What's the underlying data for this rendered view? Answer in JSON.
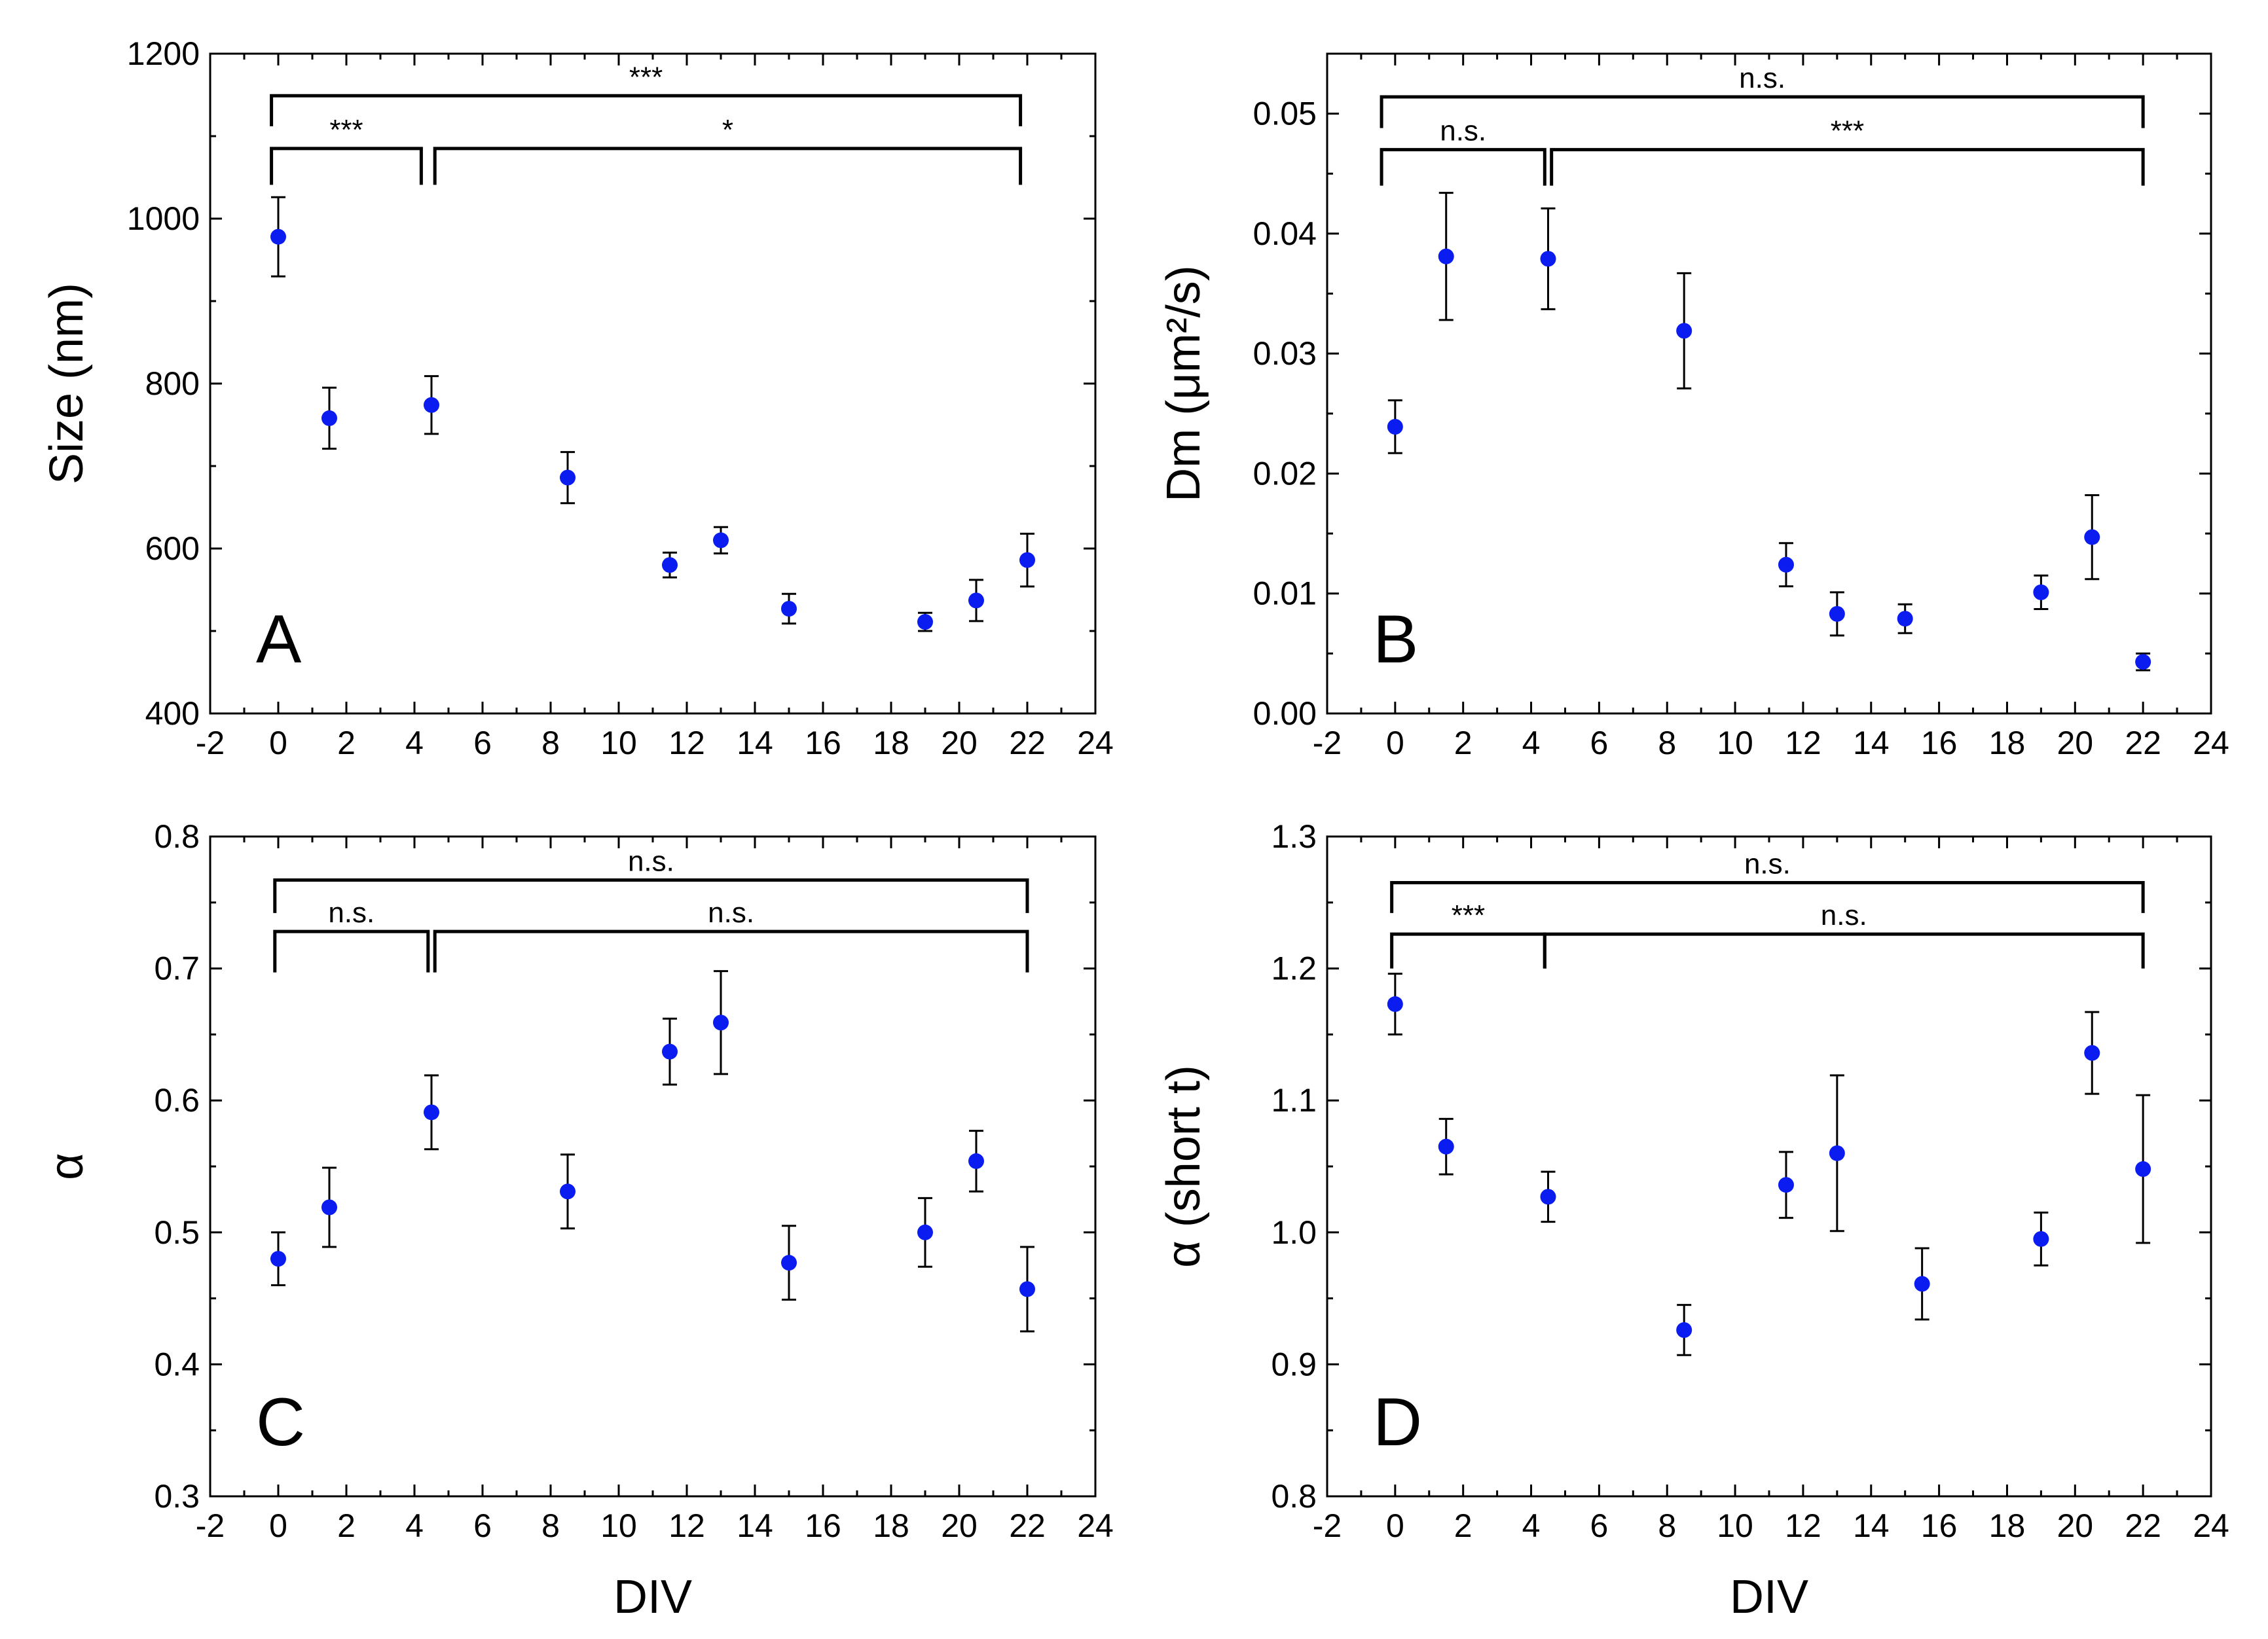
{
  "colors": {
    "marker": "#0a1cf0",
    "axis": "#000000"
  },
  "chart_data": [
    {
      "panel": "A",
      "type": "scatter",
      "xlabel": "",
      "ylabel": "Size (nm)",
      "xlim": [
        -2,
        24
      ],
      "ylim": [
        400,
        1200
      ],
      "xticks": [
        -2,
        0,
        2,
        4,
        6,
        8,
        10,
        12,
        14,
        16,
        18,
        20,
        22,
        24
      ],
      "yticks": [
        400,
        600,
        800,
        1000,
        1200
      ],
      "ytick_labels": [
        "400",
        "600",
        "800",
        "1000",
        "1200"
      ],
      "points": [
        {
          "x": 0,
          "y": 978,
          "err": 48
        },
        {
          "x": 1.5,
          "y": 758,
          "err": 37
        },
        {
          "x": 4.5,
          "y": 774,
          "err": 35
        },
        {
          "x": 8.5,
          "y": 686,
          "err": 31
        },
        {
          "x": 11.5,
          "y": 580,
          "err": 15
        },
        {
          "x": 13,
          "y": 610,
          "err": 16
        },
        {
          "x": 15,
          "y": 527,
          "err": 18
        },
        {
          "x": 19,
          "y": 511,
          "err": 11
        },
        {
          "x": 20.5,
          "y": 537,
          "err": 25
        },
        {
          "x": 22,
          "y": 586,
          "err": 32
        }
      ],
      "brackets": [
        {
          "x1": -0.2,
          "x2": 21.8,
          "y": 1149,
          "drop": 1112,
          "label": "***"
        },
        {
          "x1": -0.2,
          "x2": 4.2,
          "y": 1085,
          "drop": 1041,
          "label": "***"
        },
        {
          "x1": 4.6,
          "x2": 21.8,
          "y": 1085,
          "drop": 1041,
          "label": "*"
        }
      ]
    },
    {
      "panel": "B",
      "type": "scatter",
      "xlabel": "",
      "ylabel": "Dm (μm²/s)",
      "xlim": [
        -2,
        24
      ],
      "ylim": [
        0,
        0.055
      ],
      "xticks": [
        -2,
        0,
        2,
        4,
        6,
        8,
        10,
        12,
        14,
        16,
        18,
        20,
        22,
        24
      ],
      "yticks": [
        0,
        0.01,
        0.02,
        0.03,
        0.04,
        0.05
      ],
      "ytick_labels": [
        "0.00",
        "0.01",
        "0.02",
        "0.03",
        "0.04",
        "0.05"
      ],
      "points": [
        {
          "x": 0,
          "y": 0.0239,
          "err": 0.0022
        },
        {
          "x": 1.5,
          "y": 0.0381,
          "err": 0.0053
        },
        {
          "x": 4.5,
          "y": 0.0379,
          "err": 0.0042
        },
        {
          "x": 8.5,
          "y": 0.0319,
          "err": 0.0048
        },
        {
          "x": 11.5,
          "y": 0.0124,
          "err": 0.0018
        },
        {
          "x": 13,
          "y": 0.0083,
          "err": 0.0018
        },
        {
          "x": 15,
          "y": 0.0079,
          "err": 0.0012
        },
        {
          "x": 19,
          "y": 0.0101,
          "err": 0.0014
        },
        {
          "x": 20.5,
          "y": 0.0147,
          "err": 0.0035
        },
        {
          "x": 22,
          "y": 0.0043,
          "err": 0.0007
        }
      ],
      "brackets": [
        {
          "x1": -0.4,
          "x2": 22,
          "y": 0.0514,
          "drop": 0.0488,
          "label": "n.s."
        },
        {
          "x1": -0.4,
          "x2": 4.4,
          "y": 0.047,
          "drop": 0.044,
          "label": "n.s."
        },
        {
          "x1": 4.6,
          "x2": 22,
          "y": 0.047,
          "drop": 0.044,
          "label": "***"
        }
      ]
    },
    {
      "panel": "C",
      "type": "scatter",
      "xlabel": "DIV",
      "ylabel": "α",
      "xlim": [
        -2,
        24
      ],
      "ylim": [
        0.3,
        0.8
      ],
      "xticks": [
        -2,
        0,
        2,
        4,
        6,
        8,
        10,
        12,
        14,
        16,
        18,
        20,
        22,
        24
      ],
      "yticks": [
        0.3,
        0.4,
        0.5,
        0.6,
        0.7,
        0.8
      ],
      "ytick_labels": [
        "0.3",
        "0.4",
        "0.5",
        "0.6",
        "0.7",
        "0.8"
      ],
      "points": [
        {
          "x": 0,
          "y": 0.48,
          "err": 0.02
        },
        {
          "x": 1.5,
          "y": 0.519,
          "err": 0.03
        },
        {
          "x": 4.5,
          "y": 0.591,
          "err": 0.028
        },
        {
          "x": 8.5,
          "y": 0.531,
          "err": 0.028
        },
        {
          "x": 11.5,
          "y": 0.637,
          "err": 0.025
        },
        {
          "x": 13,
          "y": 0.659,
          "err": 0.039
        },
        {
          "x": 15,
          "y": 0.477,
          "err": 0.028
        },
        {
          "x": 19,
          "y": 0.5,
          "err": 0.026
        },
        {
          "x": 20.5,
          "y": 0.554,
          "err": 0.023
        },
        {
          "x": 22,
          "y": 0.457,
          "err": 0.032
        }
      ],
      "brackets": [
        {
          "x1": -0.1,
          "x2": 22,
          "y": 0.767,
          "drop": 0.742,
          "label": "n.s."
        },
        {
          "x1": -0.1,
          "x2": 4.4,
          "y": 0.728,
          "drop": 0.697,
          "label": "n.s."
        },
        {
          "x1": 4.6,
          "x2": 22,
          "y": 0.728,
          "drop": 0.697,
          "label": "n.s."
        }
      ]
    },
    {
      "panel": "D",
      "type": "scatter",
      "xlabel": "DIV",
      "ylabel": "α (short t)",
      "xlim": [
        -2,
        24
      ],
      "ylim": [
        0.8,
        1.3
      ],
      "xticks": [
        -2,
        0,
        2,
        4,
        6,
        8,
        10,
        12,
        14,
        16,
        18,
        20,
        22,
        24
      ],
      "yticks": [
        0.8,
        0.9,
        1.0,
        1.1,
        1.2,
        1.3
      ],
      "ytick_labels": [
        "0.8",
        "0.9",
        "1.0",
        "1.1",
        "1.2",
        "1.3"
      ],
      "points": [
        {
          "x": 0,
          "y": 1.173,
          "err": 0.023
        },
        {
          "x": 1.5,
          "y": 1.065,
          "err": 0.021
        },
        {
          "x": 4.5,
          "y": 1.027,
          "err": 0.019
        },
        {
          "x": 8.5,
          "y": 0.926,
          "err": 0.019
        },
        {
          "x": 11.5,
          "y": 1.036,
          "err": 0.025
        },
        {
          "x": 13,
          "y": 1.06,
          "err": 0.059
        },
        {
          "x": 15.5,
          "y": 0.961,
          "err": 0.027
        },
        {
          "x": 19,
          "y": 0.995,
          "err": 0.02
        },
        {
          "x": 20.5,
          "y": 1.136,
          "err": 0.031
        },
        {
          "x": 22,
          "y": 1.048,
          "err": 0.056
        }
      ],
      "brackets": [
        {
          "x1": -0.1,
          "x2": 22,
          "y": 1.265,
          "drop": 1.242,
          "label": "n.s."
        },
        {
          "x1": -0.1,
          "x2": 4.4,
          "y": 1.226,
          "drop": 1.2,
          "label": "***"
        },
        {
          "x1": 4.4,
          "x2": 22,
          "y": 1.226,
          "drop": 1.2,
          "label": "n.s."
        }
      ]
    }
  ]
}
